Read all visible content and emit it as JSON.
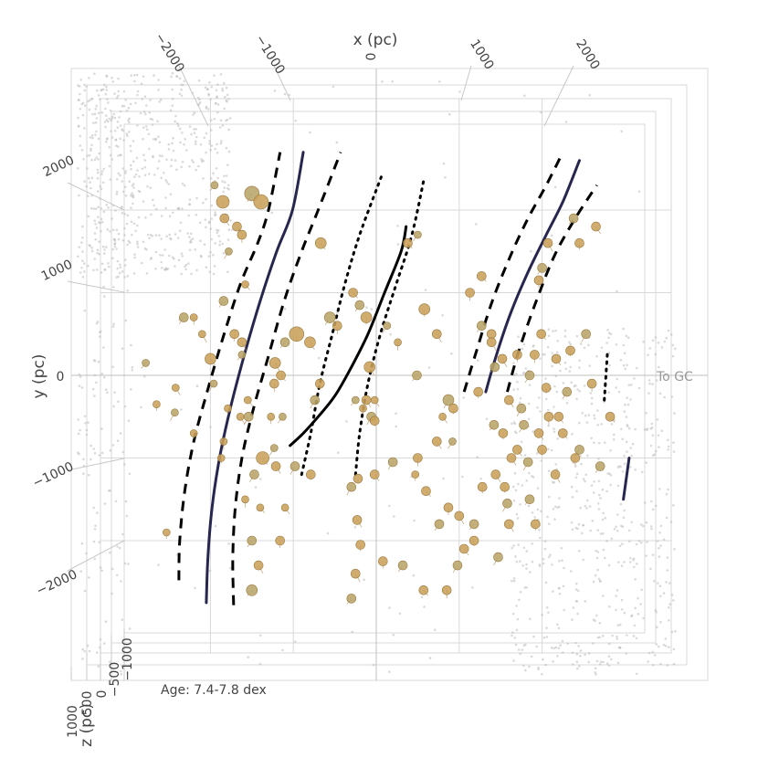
{
  "chart_data": {
    "type": "scatter",
    "projection": "3d-perspective-top-view",
    "axes": {
      "x": {
        "title": "x (pc)",
        "ticks": [
          -2000,
          -1000,
          0,
          1000,
          2000
        ],
        "tick_labels": [
          "−2000",
          "−1000",
          "0",
          "1000",
          "2000"
        ],
        "range": [
          -3000,
          3000
        ]
      },
      "y": {
        "title": "y (pc)",
        "ticks": [
          -2000,
          -1000,
          0,
          1000,
          2000
        ],
        "tick_labels": [
          "−2000",
          "−1000",
          "0",
          "1000",
          "2000"
        ],
        "range": [
          -3000,
          3000
        ]
      },
      "z": {
        "title": "z (pc)",
        "ticks": [
          1000,
          500,
          0,
          -500,
          -1000
        ],
        "tick_labels": [
          "1000",
          "500",
          "0",
          "−500",
          "−1000"
        ]
      }
    },
    "annotations": {
      "to_gc": "To GC",
      "age": "Age: 7.4-7.8 dex"
    },
    "colors": {
      "cluster_fill": "#c9a15a",
      "cluster_fill_alt": "#b9a56a",
      "cluster_stroke": "#9a7a40",
      "field_points": "#bbbbbb",
      "spiral_arm_center": "#26264f",
      "spiral_arm_edge": "#000000",
      "grid": "#d8d8d8"
    },
    "series": [
      {
        "style": "solid-navy",
        "points": [
          [
            -2050,
            -2750
          ],
          [
            -2030,
            -2200
          ],
          [
            -1980,
            -1600
          ],
          [
            -1890,
            -1000
          ],
          [
            -1760,
            -400
          ],
          [
            -1590,
            250
          ],
          [
            -1400,
            900
          ],
          [
            -1200,
            1500
          ],
          [
            -1010,
            2000
          ],
          [
            -880,
            2700
          ]
        ]
      },
      {
        "style": "dashed",
        "points": [
          [
            -2380,
            -2480
          ],
          [
            -2370,
            -2000
          ],
          [
            -2310,
            -1400
          ],
          [
            -2200,
            -800
          ],
          [
            -2040,
            -200
          ],
          [
            -1850,
            450
          ],
          [
            -1640,
            1100
          ],
          [
            -1430,
            1600
          ],
          [
            -1300,
            2000
          ],
          [
            -1160,
            2700
          ]
        ]
      },
      {
        "style": "dashed",
        "points": [
          [
            -1720,
            -2780
          ],
          [
            -1730,
            -2200
          ],
          [
            -1700,
            -1600
          ],
          [
            -1620,
            -1000
          ],
          [
            -1480,
            -400
          ],
          [
            -1310,
            200
          ],
          [
            -1110,
            900
          ],
          [
            -900,
            1500
          ],
          [
            -700,
            2000
          ],
          [
            -430,
            2700
          ]
        ]
      },
      {
        "style": "solid-black",
        "points": [
          [
            -1040,
            -850
          ],
          [
            -880,
            -700
          ],
          [
            -700,
            -500
          ],
          [
            -500,
            -250
          ],
          [
            -300,
            100
          ],
          [
            -100,
            500
          ],
          [
            100,
            1000
          ],
          [
            300,
            1500
          ],
          [
            360,
            1800
          ]
        ]
      },
      {
        "style": "dotted",
        "points": [
          [
            -900,
            -1200
          ],
          [
            -790,
            -700
          ],
          [
            -680,
            -100
          ],
          [
            -530,
            500
          ],
          [
            -380,
            1100
          ],
          [
            -200,
            1700
          ],
          [
            60,
            2400
          ]
        ]
      },
      {
        "style": "dotted",
        "points": [
          [
            -250,
            -1200
          ],
          [
            -200,
            -700
          ],
          [
            -100,
            -100
          ],
          [
            50,
            500
          ],
          [
            240,
            1100
          ],
          [
            430,
            1700
          ],
          [
            580,
            2400
          ]
        ]
      },
      {
        "style": "solid-navy",
        "points": [
          [
            1320,
            -200
          ],
          [
            1450,
            250
          ],
          [
            1620,
            750
          ],
          [
            1830,
            1250
          ],
          [
            2050,
            1700
          ],
          [
            2250,
            2100
          ],
          [
            2450,
            2600
          ]
        ]
      },
      {
        "style": "dashed",
        "points": [
          [
            1060,
            -200
          ],
          [
            1210,
            300
          ],
          [
            1400,
            900
          ],
          [
            1620,
            1450
          ],
          [
            1830,
            1900
          ],
          [
            2050,
            2300
          ],
          [
            2250,
            2700
          ]
        ]
      },
      {
        "style": "dashed",
        "points": [
          [
            1580,
            -200
          ],
          [
            1720,
            300
          ],
          [
            1930,
            900
          ],
          [
            2150,
            1450
          ],
          [
            2400,
            1900
          ],
          [
            2660,
            2300
          ]
        ]
      },
      {
        "style": "dotted",
        "points": [
          [
            2750,
            -300
          ],
          [
            2790,
            300
          ]
        ]
      },
      {
        "style": "solid-navy",
        "points": [
          [
            2980,
            -1500
          ],
          [
            3050,
            -1000
          ]
        ]
      }
    ],
    "clusters": [
      {
        "x": -1950,
        "y": 2300,
        "r": 4
      },
      {
        "x": -1850,
        "y": 2100,
        "r": 7
      },
      {
        "x": -1830,
        "y": 1900,
        "r": 5
      },
      {
        "x": -1500,
        "y": 2200,
        "r": 8
      },
      {
        "x": -1390,
        "y": 2100,
        "r": 8
      },
      {
        "x": -1680,
        "y": 1800,
        "r": 5
      },
      {
        "x": -1780,
        "y": 1500,
        "r": 4
      },
      {
        "x": -1620,
        "y": 1700,
        "r": 5
      },
      {
        "x": -1580,
        "y": 1100,
        "r": 4
      },
      {
        "x": -2320,
        "y": 700,
        "r": 5
      },
      {
        "x": -2200,
        "y": 700,
        "r": 4
      },
      {
        "x": -2100,
        "y": 500,
        "r": 4
      },
      {
        "x": -2780,
        "y": 150,
        "r": 4
      },
      {
        "x": -2650,
        "y": -350,
        "r": 4
      },
      {
        "x": -2420,
        "y": -150,
        "r": 4
      },
      {
        "x": -2430,
        "y": -450,
        "r": 4
      },
      {
        "x": -2200,
        "y": -700,
        "r": 4
      },
      {
        "x": -2000,
        "y": 200,
        "r": 6
      },
      {
        "x": -1960,
        "y": -100,
        "r": 4
      },
      {
        "x": -1840,
        "y": -800,
        "r": 4
      },
      {
        "x": -1550,
        "y": -300,
        "r": 4
      },
      {
        "x": -1840,
        "y": 900,
        "r": 5
      },
      {
        "x": -1710,
        "y": 500,
        "r": 5
      },
      {
        "x": -1620,
        "y": 400,
        "r": 5
      },
      {
        "x": -1620,
        "y": 250,
        "r": 4
      },
      {
        "x": -1790,
        "y": -400,
        "r": 4
      },
      {
        "x": -1640,
        "y": -500,
        "r": 4
      },
      {
        "x": -1540,
        "y": -500,
        "r": 5
      },
      {
        "x": -1870,
        "y": -1000,
        "r": 4
      },
      {
        "x": -1370,
        "y": -1000,
        "r": 7
      },
      {
        "x": -1470,
        "y": -1200,
        "r": 5
      },
      {
        "x": -1580,
        "y": -1500,
        "r": 4
      },
      {
        "x": -1400,
        "y": -1600,
        "r": 4
      },
      {
        "x": -1500,
        "y": -2000,
        "r": 5
      },
      {
        "x": -1160,
        "y": -2000,
        "r": 5
      },
      {
        "x": -1420,
        "y": -2300,
        "r": 5
      },
      {
        "x": -1500,
        "y": -2600,
        "r": 6
      },
      {
        "x": -2530,
        "y": -1900,
        "r": 4
      },
      {
        "x": -1210,
        "y": -1100,
        "r": 5
      },
      {
        "x": -980,
        "y": -1100,
        "r": 5
      },
      {
        "x": -790,
        "y": -1200,
        "r": 5
      },
      {
        "x": -1100,
        "y": -1600,
        "r": 4
      },
      {
        "x": -1230,
        "y": -880,
        "r": 4
      },
      {
        "x": -1230,
        "y": -100,
        "r": 5
      },
      {
        "x": -1150,
        "y": 0,
        "r": 5
      },
      {
        "x": -1130,
        "y": -500,
        "r": 4
      },
      {
        "x": -1270,
        "y": -500,
        "r": 4
      },
      {
        "x": -1220,
        "y": 150,
        "r": 6
      },
      {
        "x": -1100,
        "y": 400,
        "r": 5
      },
      {
        "x": -960,
        "y": 500,
        "r": 8
      },
      {
        "x": -800,
        "y": 400,
        "r": 6
      },
      {
        "x": -740,
        "y": -300,
        "r": 5
      },
      {
        "x": -680,
        "y": -100,
        "r": 5
      },
      {
        "x": -670,
        "y": 1600,
        "r": 6
      },
      {
        "x": -560,
        "y": 700,
        "r": 6
      },
      {
        "x": -470,
        "y": 600,
        "r": 5
      },
      {
        "x": -280,
        "y": 1000,
        "r": 5
      },
      {
        "x": -200,
        "y": 850,
        "r": 5
      },
      {
        "x": -120,
        "y": 700,
        "r": 6
      },
      {
        "x": -80,
        "y": 100,
        "r": 6
      },
      {
        "x": -250,
        "y": -300,
        "r": 4
      },
      {
        "x": -160,
        "y": -400,
        "r": 4
      },
      {
        "x": -120,
        "y": -300,
        "r": 5
      },
      {
        "x": -60,
        "y": -500,
        "r": 5
      },
      {
        "x": -20,
        "y": -550,
        "r": 5
      },
      {
        "x": -20,
        "y": -300,
        "r": 4
      },
      {
        "x": 130,
        "y": 600,
        "r": 4
      },
      {
        "x": 260,
        "y": 400,
        "r": 4
      },
      {
        "x": 380,
        "y": 1600,
        "r": 5
      },
      {
        "x": 500,
        "y": 1700,
        "r": 4
      },
      {
        "x": 580,
        "y": 800,
        "r": 6
      },
      {
        "x": 730,
        "y": 500,
        "r": 5
      },
      {
        "x": 490,
        "y": 0,
        "r": 5
      },
      {
        "x": 470,
        "y": -1200,
        "r": 4
      },
      {
        "x": 730,
        "y": -800,
        "r": 5
      },
      {
        "x": 870,
        "y": -300,
        "r": 6
      },
      {
        "x": 930,
        "y": -400,
        "r": 5
      },
      {
        "x": 800,
        "y": -500,
        "r": 4
      },
      {
        "x": 920,
        "y": -800,
        "r": 4
      },
      {
        "x": 1130,
        "y": 1000,
        "r": 5
      },
      {
        "x": 1270,
        "y": 1200,
        "r": 5
      },
      {
        "x": 1270,
        "y": 600,
        "r": 5
      },
      {
        "x": 1390,
        "y": 500,
        "r": 5
      },
      {
        "x": 1390,
        "y": 400,
        "r": 5
      },
      {
        "x": 1420,
        "y": -600,
        "r": 5
      },
      {
        "x": 1530,
        "y": -700,
        "r": 5
      },
      {
        "x": 1630,
        "y": -1000,
        "r": 5
      },
      {
        "x": 1830,
        "y": -1050,
        "r": 5
      },
      {
        "x": 2000,
        "y": -900,
        "r": 5
      },
      {
        "x": 1960,
        "y": -700,
        "r": 5
      },
      {
        "x": 1850,
        "y": 0,
        "r": 5
      },
      {
        "x": 1910,
        "y": 250,
        "r": 5
      },
      {
        "x": 1990,
        "y": 500,
        "r": 5
      },
      {
        "x": 2000,
        "y": 1300,
        "r": 5
      },
      {
        "x": 1960,
        "y": 1150,
        "r": 5
      },
      {
        "x": 2070,
        "y": 1600,
        "r": 5
      },
      {
        "x": 2380,
        "y": 1900,
        "r": 5
      },
      {
        "x": 2450,
        "y": 1600,
        "r": 5
      },
      {
        "x": 2650,
        "y": 1800,
        "r": 5
      },
      {
        "x": 2530,
        "y": 500,
        "r": 5
      },
      {
        "x": 2340,
        "y": 300,
        "r": 5
      },
      {
        "x": 2170,
        "y": 200,
        "r": 5
      },
      {
        "x": 2300,
        "y": -200,
        "r": 5
      },
      {
        "x": 2600,
        "y": -100,
        "r": 5
      },
      {
        "x": 2820,
        "y": -500,
        "r": 5
      },
      {
        "x": 2700,
        "y": -1100,
        "r": 5
      },
      {
        "x": 2400,
        "y": -1000,
        "r": 5
      },
      {
        "x": 2160,
        "y": -1200,
        "r": 5
      },
      {
        "x": 1850,
        "y": -1500,
        "r": 5
      },
      {
        "x": 1920,
        "y": -1800,
        "r": 5
      },
      {
        "x": 1600,
        "y": -1800,
        "r": 5
      },
      {
        "x": 1470,
        "y": -2200,
        "r": 5
      },
      {
        "x": 1180,
        "y": -2000,
        "r": 5
      },
      {
        "x": 1060,
        "y": -2100,
        "r": 5
      },
      {
        "x": 980,
        "y": -2300,
        "r": 5
      },
      {
        "x": 850,
        "y": -2600,
        "r": 5
      },
      {
        "x": 570,
        "y": -2600,
        "r": 5
      },
      {
        "x": 320,
        "y": -2300,
        "r": 5
      },
      {
        "x": 80,
        "y": -2250,
        "r": 5
      },
      {
        "x": -250,
        "y": -2400,
        "r": 5
      },
      {
        "x": -300,
        "y": -2700,
        "r": 5
      },
      {
        "x": -190,
        "y": -2050,
        "r": 5
      },
      {
        "x": -230,
        "y": -1750,
        "r": 5
      },
      {
        "x": -300,
        "y": -1350,
        "r": 5
      },
      {
        "x": -220,
        "y": -1250,
        "r": 5
      },
      {
        "x": -20,
        "y": -1200,
        "r": 5
      },
      {
        "x": 200,
        "y": -1050,
        "r": 5
      },
      {
        "x": 500,
        "y": -1000,
        "r": 5
      },
      {
        "x": 600,
        "y": -1400,
        "r": 5
      },
      {
        "x": 760,
        "y": -1800,
        "r": 5
      },
      {
        "x": 870,
        "y": -1600,
        "r": 5
      },
      {
        "x": 1000,
        "y": -1700,
        "r": 5
      },
      {
        "x": 1180,
        "y": -1800,
        "r": 5
      },
      {
        "x": 1280,
        "y": -1350,
        "r": 5
      },
      {
        "x": 1440,
        "y": -1200,
        "r": 5
      },
      {
        "x": 1580,
        "y": -1550,
        "r": 5
      },
      {
        "x": 1550,
        "y": -1350,
        "r": 5
      },
      {
        "x": 1700,
        "y": -900,
        "r": 5
      },
      {
        "x": 1780,
        "y": -600,
        "r": 5
      },
      {
        "x": 2080,
        "y": -500,
        "r": 5
      },
      {
        "x": 2250,
        "y": -700,
        "r": 5
      },
      {
        "x": 2450,
        "y": -900,
        "r": 5
      },
      {
        "x": 1700,
        "y": 250,
        "r": 5
      },
      {
        "x": 1520,
        "y": 200,
        "r": 5
      },
      {
        "x": 1430,
        "y": 100,
        "r": 5
      },
      {
        "x": 1230,
        "y": -200,
        "r": 5
      },
      {
        "x": 1600,
        "y": -300,
        "r": 5
      },
      {
        "x": 1750,
        "y": -400,
        "r": 5
      },
      {
        "x": 2050,
        "y": -150,
        "r": 5
      },
      {
        "x": 2200,
        "y": -500,
        "r": 5
      }
    ],
    "field_point_count": 1400
  }
}
